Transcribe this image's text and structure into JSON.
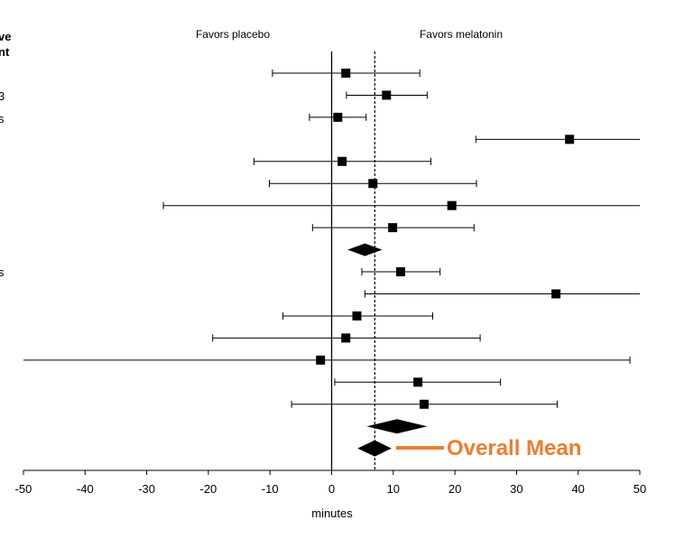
{
  "chart_data": {
    "type": "forest",
    "xlabel": "minutes",
    "xlim": [
      -50,
      50
    ],
    "xticks": [
      "-50",
      "-40",
      "-30",
      "-20",
      "-10",
      "0",
      "10",
      "20",
      "30",
      "40",
      "50"
    ],
    "reference_line": 0,
    "overall_line": 7,
    "left_header": "Favors placebo",
    "right_header": "Favors melatonin",
    "cut_off_text": [
      "ve",
      "nt",
      "3",
      "s",
      "s"
    ],
    "studies": [
      {
        "est": 2.3,
        "lo": -9.6,
        "hi": 14.3
      },
      {
        "est": 8.9,
        "lo": 2.4,
        "hi": 15.5
      },
      {
        "est": 1.0,
        "lo": -3.6,
        "hi": 5.6
      },
      {
        "est": 38.6,
        "lo": 23.4,
        "hi": 50.0
      },
      {
        "est": 1.7,
        "lo": -12.6,
        "hi": 16.1
      },
      {
        "est": 6.7,
        "lo": -10.1,
        "hi": 23.5
      },
      {
        "est": 19.5,
        "lo": -27.3,
        "hi": 50.0
      },
      {
        "est": 9.9,
        "lo": -3.1,
        "hi": 23.1
      },
      {
        "est": 11.2,
        "lo": 4.9,
        "hi": 17.6
      },
      {
        "est": 36.4,
        "lo": 5.4,
        "hi": 50.0
      },
      {
        "est": 4.1,
        "lo": -7.9,
        "hi": 16.4
      },
      {
        "est": 2.3,
        "lo": -19.3,
        "hi": 24.1
      },
      {
        "est": -1.8,
        "lo": -50.0,
        "hi": 48.4
      },
      {
        "est": 14.0,
        "lo": 0.5,
        "hi": 27.4
      },
      {
        "est": 15.0,
        "lo": -6.5,
        "hi": 36.6
      }
    ],
    "summaries": [
      {
        "est": 5.4,
        "lo": 2.6,
        "hi": 8.2
      },
      {
        "est": 10.6,
        "lo": 5.7,
        "hi": 15.5
      },
      {
        "est": 7.0,
        "lo": 4.2,
        "hi": 9.7
      }
    ],
    "annotation": {
      "text": "Overall Mean",
      "color": "#ED7D31"
    }
  }
}
